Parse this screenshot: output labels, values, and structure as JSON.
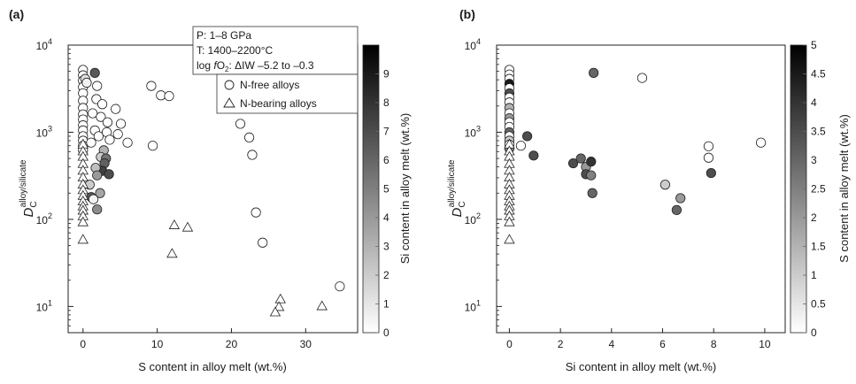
{
  "chart_data": [
    {
      "type": "scatter",
      "panel_label": "(a)",
      "xlabel": "S content in alloy melt (wt.%)",
      "ylabel": "D_C^alloy/silicate",
      "ylabel_main": "D",
      "ylabel_sub": "C",
      "ylabel_sup": "alloy/silicate",
      "xlim": [
        -2,
        37
      ],
      "ylim": [
        5,
        10000
      ],
      "yscale": "log",
      "x_ticks": [
        0,
        10,
        20,
        30
      ],
      "x_tick_labels": [
        "0",
        "10",
        "20",
        "30"
      ],
      "y_ticks": [
        10,
        100,
        1000,
        10000
      ],
      "y_tick_labels": [
        {
          "base": "10",
          "exp": "1"
        },
        {
          "base": "10",
          "exp": "2"
        },
        {
          "base": "10",
          "exp": "3"
        },
        {
          "base": "10",
          "exp": "4"
        }
      ],
      "conditions": {
        "pressure": "P: 1–8 GPa",
        "temperature": "T: 1400–2200°C",
        "fo2_prefix": "log ",
        "fo2_italic": "f",
        "fo2_o": "O",
        "fo2_sub": "2",
        "fo2_suffix": ": ΔIW –5.2 to –0.3"
      },
      "legend": [
        {
          "name": "N-free alloys",
          "marker": "circle"
        },
        {
          "name": "N-bearing alloys",
          "marker": "triangle"
        }
      ],
      "colorbar": {
        "label": "Si content in alloy melt (wt.%)",
        "min": 0,
        "max": 10,
        "ticks": [
          0,
          1,
          2,
          3,
          4,
          5,
          6,
          7,
          8,
          9
        ],
        "tick_labels": [
          "0",
          "1",
          "2",
          "3",
          "4",
          "5",
          "6",
          "7",
          "8",
          "9"
        ]
      },
      "series": [
        {
          "marker": "circle",
          "points": [
            {
              "x": 0,
              "y": 5200,
              "c": 0
            },
            {
              "x": 0,
              "y": 4500,
              "c": 0
            },
            {
              "x": 0,
              "y": 3900,
              "c": 0
            },
            {
              "x": 0,
              "y": 3300,
              "c": 0
            },
            {
              "x": 0,
              "y": 2800,
              "c": 0
            },
            {
              "x": 0,
              "y": 2300,
              "c": 0
            },
            {
              "x": 0,
              "y": 1900,
              "c": 0
            },
            {
              "x": 0,
              "y": 1600,
              "c": 0
            },
            {
              "x": 0,
              "y": 1400,
              "c": 0
            },
            {
              "x": 0,
              "y": 1200,
              "c": 0
            },
            {
              "x": 0,
              "y": 1050,
              "c": 0
            },
            {
              "x": 0,
              "y": 900,
              "c": 0
            },
            {
              "x": 0,
              "y": 800,
              "c": 0
            },
            {
              "x": 0,
              "y": 700,
              "c": 0
            },
            {
              "x": 0,
              "y": 620,
              "c": 0
            },
            {
              "x": 0.3,
              "y": 4100,
              "c": 1.2
            },
            {
              "x": 0.5,
              "y": 3700,
              "c": 0.5
            },
            {
              "x": 1.6,
              "y": 4800,
              "c": 6.5
            },
            {
              "x": 1.9,
              "y": 3400,
              "c": 0
            },
            {
              "x": 1.8,
              "y": 2400,
              "c": 0
            },
            {
              "x": 2.6,
              "y": 2100,
              "c": 0
            },
            {
              "x": 1.3,
              "y": 1650,
              "c": 0
            },
            {
              "x": 2.4,
              "y": 1500,
              "c": 0
            },
            {
              "x": 3.3,
              "y": 1300,
              "c": 0
            },
            {
              "x": 1.6,
              "y": 1050,
              "c": 0
            },
            {
              "x": 2.1,
              "y": 900,
              "c": 0
            },
            {
              "x": 3.2,
              "y": 1000,
              "c": 0
            },
            {
              "x": 3.6,
              "y": 820,
              "c": 0
            },
            {
              "x": 4.4,
              "y": 1850,
              "c": 0
            },
            {
              "x": 5.1,
              "y": 1250,
              "c": 0
            },
            {
              "x": 4.7,
              "y": 950,
              "c": 0
            },
            {
              "x": 6.0,
              "y": 760,
              "c": 0
            },
            {
              "x": 1.1,
              "y": 760,
              "c": 0
            },
            {
              "x": 2.8,
              "y": 620,
              "c": 3.0
            },
            {
              "x": 2.4,
              "y": 520,
              "c": 2.0
            },
            {
              "x": 3.1,
              "y": 500,
              "c": 5.5
            },
            {
              "x": 2.9,
              "y": 440,
              "c": 6.2
            },
            {
              "x": 2.6,
              "y": 360,
              "c": 7.5
            },
            {
              "x": 3.5,
              "y": 330,
              "c": 7.0
            },
            {
              "x": 1.7,
              "y": 390,
              "c": 2.5
            },
            {
              "x": 1.9,
              "y": 320,
              "c": 4.0
            },
            {
              "x": 2.3,
              "y": 200,
              "c": 3.5
            },
            {
              "x": 1.1,
              "y": 180,
              "c": 6.5
            },
            {
              "x": 1.9,
              "y": 130,
              "c": 4.5
            },
            {
              "x": 1.4,
              "y": 170,
              "c": 0.5
            },
            {
              "x": 0.9,
              "y": 250,
              "c": 2.0
            },
            {
              "x": 9.2,
              "y": 3400,
              "c": 0
            },
            {
              "x": 10.5,
              "y": 2650,
              "c": 0
            },
            {
              "x": 11.6,
              "y": 2600,
              "c": 0
            },
            {
              "x": 9.4,
              "y": 700,
              "c": 0
            },
            {
              "x": 21.2,
              "y": 1250,
              "c": 0
            },
            {
              "x": 22.4,
              "y": 870,
              "c": 0
            },
            {
              "x": 22.8,
              "y": 550,
              "c": 0
            },
            {
              "x": 23.3,
              "y": 120,
              "c": 0
            },
            {
              "x": 24.2,
              "y": 54,
              "c": 0
            },
            {
              "x": 34.6,
              "y": 17,
              "c": 0
            }
          ]
        },
        {
          "marker": "triangle",
          "points": [
            {
              "x": 0,
              "y": 720,
              "c": 0
            },
            {
              "x": 0,
              "y": 600,
              "c": 0
            },
            {
              "x": 0,
              "y": 520,
              "c": 0
            },
            {
              "x": 0,
              "y": 430,
              "c": 0
            },
            {
              "x": 0,
              "y": 360,
              "c": 0
            },
            {
              "x": 0,
              "y": 300,
              "c": 0
            },
            {
              "x": 0,
              "y": 250,
              "c": 0
            },
            {
              "x": 0,
              "y": 215,
              "c": 0
            },
            {
              "x": 0,
              "y": 185,
              "c": 0
            },
            {
              "x": 0,
              "y": 160,
              "c": 0
            },
            {
              "x": 0,
              "y": 140,
              "c": 0
            },
            {
              "x": 0,
              "y": 125,
              "c": 0
            },
            {
              "x": 0,
              "y": 108,
              "c": 0
            },
            {
              "x": 0,
              "y": 92,
              "c": 0
            },
            {
              "x": 0,
              "y": 58,
              "c": 0
            },
            {
              "x": 12.3,
              "y": 85,
              "c": 0
            },
            {
              "x": 14.1,
              "y": 80,
              "c": 0
            },
            {
              "x": 12.0,
              "y": 40,
              "c": 0
            },
            {
              "x": 26.6,
              "y": 12,
              "c": 0
            },
            {
              "x": 26.4,
              "y": 9.8,
              "c": 0
            },
            {
              "x": 25.9,
              "y": 8.5,
              "c": 0
            },
            {
              "x": 32.2,
              "y": 10,
              "c": 0
            }
          ]
        }
      ]
    },
    {
      "type": "scatter",
      "panel_label": "(b)",
      "xlabel": "Si content in alloy melt (wt.%)",
      "ylabel": "D_C^alloy/silicate",
      "ylabel_main": "D",
      "ylabel_sub": "C",
      "ylabel_sup": "alloy/silicate",
      "xlim": [
        -0.5,
        10.8
      ],
      "ylim": [
        5,
        10000
      ],
      "yscale": "log",
      "x_ticks": [
        0,
        2,
        4,
        6,
        8,
        10
      ],
      "x_tick_labels": [
        "0",
        "2",
        "4",
        "6",
        "8",
        "10"
      ],
      "y_ticks": [
        10,
        100,
        1000,
        10000
      ],
      "y_tick_labels": [
        {
          "base": "10",
          "exp": "1"
        },
        {
          "base": "10",
          "exp": "2"
        },
        {
          "base": "10",
          "exp": "3"
        },
        {
          "base": "10",
          "exp": "4"
        }
      ],
      "colorbar": {
        "label": "S content in alloy melt (wt.%)",
        "min": 0,
        "max": 5,
        "ticks": [
          0,
          0.5,
          1,
          1.5,
          2,
          2.5,
          3,
          3.5,
          4,
          4.5,
          5
        ],
        "tick_labels": [
          "0",
          "0.5",
          "1",
          "1.5",
          "2",
          "2.5",
          "3",
          "3.5",
          "4",
          "4.5",
          "5"
        ]
      },
      "series": [
        {
          "marker": "circle",
          "points": [
            {
              "x": 0,
              "y": 5200,
              "c": 0
            },
            {
              "x": 0,
              "y": 4600,
              "c": 0
            },
            {
              "x": 0,
              "y": 4100,
              "c": 0
            },
            {
              "x": 0,
              "y": 3600,
              "c": 4.5
            },
            {
              "x": 0,
              "y": 3200,
              "c": 0
            },
            {
              "x": 0,
              "y": 2800,
              "c": 3.5
            },
            {
              "x": 0,
              "y": 2500,
              "c": 0
            },
            {
              "x": 0,
              "y": 2200,
              "c": 0
            },
            {
              "x": 0,
              "y": 1900,
              "c": 1.5
            },
            {
              "x": 0,
              "y": 1650,
              "c": 0
            },
            {
              "x": 0,
              "y": 1450,
              "c": 2.0
            },
            {
              "x": 0,
              "y": 1300,
              "c": 0
            },
            {
              "x": 0,
              "y": 1150,
              "c": 0
            },
            {
              "x": 0,
              "y": 1000,
              "c": 3.0
            },
            {
              "x": 0,
              "y": 900,
              "c": 0
            },
            {
              "x": 0,
              "y": 800,
              "c": 1.0
            },
            {
              "x": 0,
              "y": 720,
              "c": 0
            },
            {
              "x": 0,
              "y": 650,
              "c": 2.5
            },
            {
              "x": 0.45,
              "y": 700,
              "c": 0
            },
            {
              "x": 0.7,
              "y": 900,
              "c": 3.5
            },
            {
              "x": 0.95,
              "y": 540,
              "c": 3.5
            },
            {
              "x": 3.3,
              "y": 4800,
              "c": 3.0
            },
            {
              "x": 5.2,
              "y": 4200,
              "c": 0
            },
            {
              "x": 2.5,
              "y": 440,
              "c": 3.5
            },
            {
              "x": 2.8,
              "y": 500,
              "c": 3.0
            },
            {
              "x": 3.0,
              "y": 400,
              "c": 2.0
            },
            {
              "x": 3.2,
              "y": 460,
              "c": 4.0
            },
            {
              "x": 3.0,
              "y": 330,
              "c": 3.5
            },
            {
              "x": 3.2,
              "y": 320,
              "c": 2.5
            },
            {
              "x": 3.25,
              "y": 200,
              "c": 3.0
            },
            {
              "x": 6.1,
              "y": 250,
              "c": 1.0
            },
            {
              "x": 6.7,
              "y": 175,
              "c": 2.0
            },
            {
              "x": 6.55,
              "y": 128,
              "c": 3.0
            },
            {
              "x": 7.8,
              "y": 690,
              "c": 0
            },
            {
              "x": 7.8,
              "y": 510,
              "c": 0
            },
            {
              "x": 7.9,
              "y": 340,
              "c": 3.5
            },
            {
              "x": 9.85,
              "y": 760,
              "c": 0
            }
          ]
        },
        {
          "marker": "triangle",
          "points": [
            {
              "x": 0,
              "y": 720,
              "c": 0
            },
            {
              "x": 0,
              "y": 600,
              "c": 0
            },
            {
              "x": 0,
              "y": 520,
              "c": 0
            },
            {
              "x": 0,
              "y": 430,
              "c": 0
            },
            {
              "x": 0,
              "y": 360,
              "c": 0
            },
            {
              "x": 0,
              "y": 300,
              "c": 0
            },
            {
              "x": 0,
              "y": 250,
              "c": 0
            },
            {
              "x": 0,
              "y": 215,
              "c": 0
            },
            {
              "x": 0,
              "y": 185,
              "c": 0
            },
            {
              "x": 0,
              "y": 160,
              "c": 0
            },
            {
              "x": 0,
              "y": 140,
              "c": 0
            },
            {
              "x": 0,
              "y": 125,
              "c": 0
            },
            {
              "x": 0,
              "y": 108,
              "c": 0
            },
            {
              "x": 0,
              "y": 92,
              "c": 0
            },
            {
              "x": 0,
              "y": 58,
              "c": 0
            }
          ]
        }
      ]
    }
  ]
}
